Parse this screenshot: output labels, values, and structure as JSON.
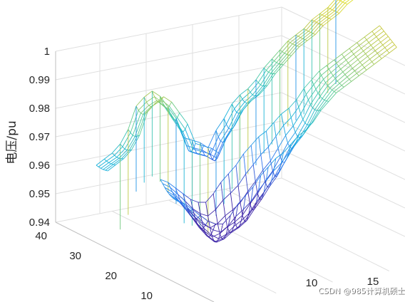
{
  "chart_data": {
    "type": "mesh3d",
    "zlabel": "电压/pu",
    "z_ticks": [
      "0.94",
      "0.95",
      "0.96",
      "0.97",
      "0.98",
      "0.99",
      "1"
    ],
    "zlim": [
      0.94,
      1.0
    ],
    "y_ticks": [
      "10",
      "20",
      "30",
      "40"
    ],
    "x_ticks": [
      "10",
      "15"
    ],
    "grid": "on",
    "colormap": "parula",
    "surfaces": [
      {
        "name": "",
        "node_profile": [
          0.96,
          0.961,
          0.962,
          0.964,
          0.968,
          0.975,
          0.977,
          0.978,
          0.975,
          0.97,
          0.965,
          0.957,
          0.955,
          0.953,
          0.95,
          0.955,
          0.958,
          0.962,
          0.964,
          0.965,
          0.967,
          0.97,
          0.972,
          0.974,
          0.976,
          0.977,
          0.978,
          0.98,
          0.981,
          0.982,
          0.984,
          0.985,
          0.986
        ]
      },
      {
        "name": "",
        "node_profile": [
          0.955,
          0.953,
          0.95,
          0.947,
          0.944,
          0.942,
          0.941,
          0.943,
          0.946,
          0.948,
          0.95,
          0.953,
          0.955,
          0.957,
          0.958,
          0.96,
          0.962,
          0.963,
          0.965,
          0.968,
          0.97,
          0.972,
          0.973,
          0.974,
          0.975,
          0.976,
          0.977,
          0.978,
          0.979,
          0.98
        ]
      }
    ]
  },
  "watermark": "CSDN @985计算机硕士"
}
